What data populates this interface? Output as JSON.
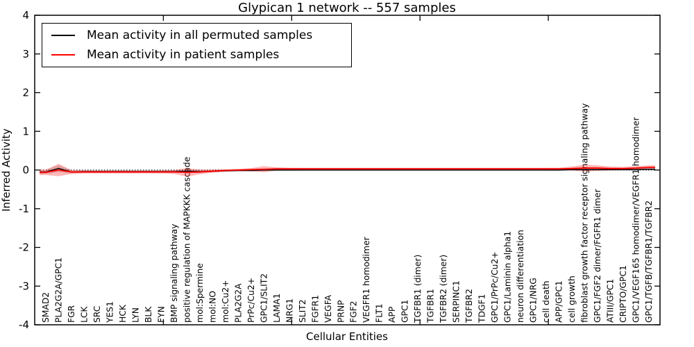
{
  "chart_data": {
    "type": "line",
    "title": "Glypican 1 network -- 557 samples",
    "xlabel": "Cellular Entities",
    "ylabel": "Inferred Activity",
    "ylim": [
      -4,
      4
    ],
    "yticks": [
      4,
      3,
      2,
      1,
      0,
      -1,
      -2,
      -3,
      -4
    ],
    "grid": false,
    "zero_reference_line": true,
    "legend_position": "upper left",
    "categories": [
      "SMAD2",
      "PLA2G2A/GPC1",
      "FGR",
      "LCK",
      "SRC",
      "YES1",
      "HCK",
      "LYN",
      "BLK",
      "FYN",
      "BMP signaling pathway",
      "positive regulation of MAPKKK cascade",
      "mol:Spermine",
      "mol:NO",
      "mol:Cu2+",
      "PLA2G2A",
      "PrPc/Cu2+",
      "GPC1/SLIT2",
      "LAMA1",
      "NRG1",
      "SLIT2",
      "FGFR1",
      "VEGFA",
      "PRNP",
      "FGF2",
      "VEGFR1 homodimer",
      "FLT1",
      "APP",
      "GPC1",
      "TGFBR1 (dimer)",
      "TGFBR1",
      "TGFBR2 (dimer)",
      "SERPINC1",
      "TGFBR2",
      "TDGF1",
      "GPC1/PrPc/Cu2+",
      "GPC1/Laminin alpha1",
      "neuron differentiation",
      "GPC1/NRG",
      "cell death",
      "APP/GPC1",
      "cell growth",
      "fibroblast growth factor receptor signaling pathway",
      "GPC1/FGF2 dimer/FGFR1 dimer",
      "ATIII/GPC1",
      "CRIPTO/GPC1",
      "GPC1/VEGF165 homodimer/VEGFR1 homodimer",
      "GPC1/TGFB/TGFBR1/TGFBR2"
    ],
    "series": [
      {
        "name": "Mean activity in all permuted samples",
        "color": "#000000",
        "band_color": "rgba(0,0,0,0.15)",
        "values": [
          -0.05,
          0.04,
          -0.05,
          -0.04,
          -0.04,
          -0.04,
          -0.04,
          -0.04,
          -0.04,
          -0.04,
          -0.04,
          -0.03,
          -0.04,
          -0.03,
          -0.02,
          -0.01,
          -0.01,
          0,
          0,
          0,
          0,
          0,
          0,
          0,
          0,
          0,
          0,
          0,
          0,
          0,
          0,
          0,
          0,
          0,
          0,
          0,
          0,
          0,
          0,
          0,
          0,
          0.01,
          0.01,
          0.01,
          0.01,
          0.01,
          0.01,
          0.02
        ],
        "band_halfwidth": [
          0.05,
          0.09,
          0.04,
          0.03,
          0.03,
          0.03,
          0.03,
          0.03,
          0.03,
          0.03,
          0.03,
          0.04,
          0.03,
          0.03,
          0.02,
          0.02,
          0.02,
          0.03,
          0.02,
          0.02,
          0.015,
          0.015,
          0.015,
          0.015,
          0.015,
          0.015,
          0.015,
          0.015,
          0.015,
          0.015,
          0.015,
          0.015,
          0.015,
          0.015,
          0.015,
          0.015,
          0.015,
          0.015,
          0.015,
          0.015,
          0.02,
          0.02,
          0.03,
          0.03,
          0.02,
          0.02,
          0.02,
          0.03
        ]
      },
      {
        "name": "Mean activity in patient samples",
        "color": "#ff0000",
        "band_color": "rgba(255,0,0,0.28)",
        "values": [
          -0.06,
          0.0,
          -0.05,
          -0.05,
          -0.05,
          -0.05,
          -0.05,
          -0.05,
          -0.05,
          -0.05,
          -0.05,
          -0.06,
          -0.05,
          -0.03,
          -0.01,
          0.0,
          0.01,
          0.02,
          0.03,
          0.03,
          0.03,
          0.03,
          0.03,
          0.03,
          0.03,
          0.03,
          0.03,
          0.03,
          0.03,
          0.03,
          0.03,
          0.03,
          0.03,
          0.03,
          0.03,
          0.03,
          0.03,
          0.03,
          0.03,
          0.03,
          0.03,
          0.04,
          0.05,
          0.05,
          0.04,
          0.04,
          0.05,
          0.07
        ],
        "band_halfwidth": [
          0.07,
          0.16,
          0.05,
          0.04,
          0.04,
          0.04,
          0.04,
          0.04,
          0.04,
          0.04,
          0.05,
          0.11,
          0.06,
          0.04,
          0.03,
          0.03,
          0.04,
          0.08,
          0.04,
          0.03,
          0.025,
          0.025,
          0.025,
          0.025,
          0.025,
          0.025,
          0.025,
          0.025,
          0.025,
          0.025,
          0.025,
          0.025,
          0.025,
          0.025,
          0.025,
          0.025,
          0.025,
          0.025,
          0.025,
          0.03,
          0.03,
          0.05,
          0.09,
          0.07,
          0.05,
          0.04,
          0.05,
          0.05
        ]
      }
    ]
  }
}
